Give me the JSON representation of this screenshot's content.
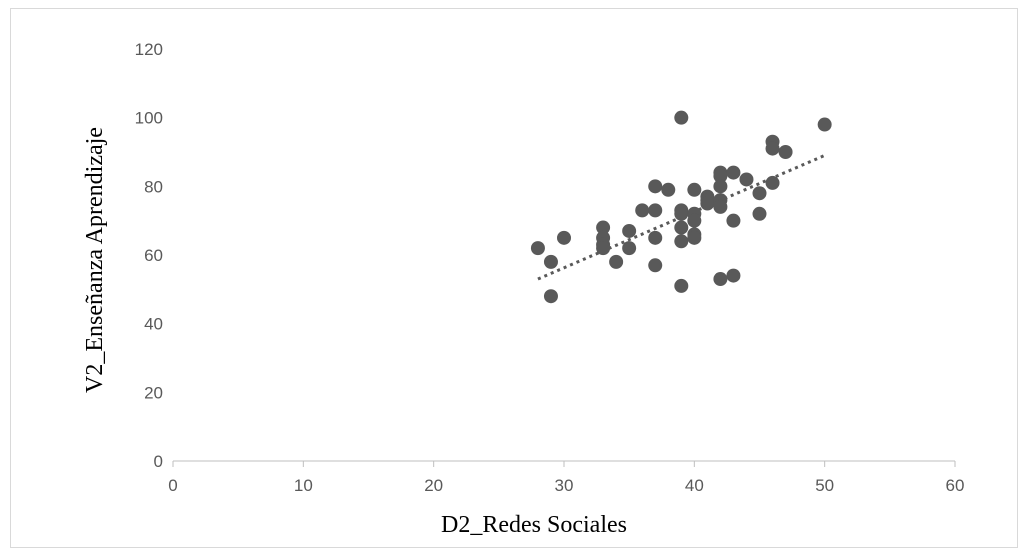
{
  "chart_data": {
    "type": "scatter",
    "title": "",
    "xlabel": "D2_Redes Sociales",
    "ylabel": "V2_Enseñanza Aprendizaje",
    "xlim": [
      0,
      60
    ],
    "ylim": [
      0,
      120
    ],
    "x_ticks": [
      0,
      10,
      20,
      30,
      40,
      50,
      60
    ],
    "y_ticks": [
      0,
      20,
      40,
      60,
      80,
      100,
      120
    ],
    "grid": false,
    "legend": "none",
    "trendline": {
      "style": "dotted linear",
      "x": [
        28,
        50
      ],
      "y": [
        53,
        89
      ]
    },
    "colors": {
      "marker": "#595959",
      "trendline": "#595959",
      "axis": "#bfbfbf",
      "tick_text": "#595959"
    },
    "points": [
      {
        "x": 28,
        "y": 62
      },
      {
        "x": 29,
        "y": 58
      },
      {
        "x": 29,
        "y": 48
      },
      {
        "x": 30,
        "y": 65
      },
      {
        "x": 33,
        "y": 68
      },
      {
        "x": 33,
        "y": 65
      },
      {
        "x": 33,
        "y": 63
      },
      {
        "x": 33,
        "y": 62
      },
      {
        "x": 34,
        "y": 58
      },
      {
        "x": 35,
        "y": 67
      },
      {
        "x": 35,
        "y": 62
      },
      {
        "x": 36,
        "y": 73
      },
      {
        "x": 37,
        "y": 80
      },
      {
        "x": 37,
        "y": 73
      },
      {
        "x": 37,
        "y": 65
      },
      {
        "x": 37,
        "y": 57
      },
      {
        "x": 38,
        "y": 79
      },
      {
        "x": 39,
        "y": 100
      },
      {
        "x": 39,
        "y": 73
      },
      {
        "x": 39,
        "y": 72
      },
      {
        "x": 39,
        "y": 68
      },
      {
        "x": 39,
        "y": 64
      },
      {
        "x": 39,
        "y": 51
      },
      {
        "x": 40,
        "y": 79
      },
      {
        "x": 40,
        "y": 72
      },
      {
        "x": 40,
        "y": 70
      },
      {
        "x": 40,
        "y": 66
      },
      {
        "x": 40,
        "y": 65
      },
      {
        "x": 41,
        "y": 77
      },
      {
        "x": 41,
        "y": 76
      },
      {
        "x": 41,
        "y": 75
      },
      {
        "x": 42,
        "y": 84
      },
      {
        "x": 42,
        "y": 83
      },
      {
        "x": 42,
        "y": 80
      },
      {
        "x": 42,
        "y": 76
      },
      {
        "x": 42,
        "y": 74
      },
      {
        "x": 42,
        "y": 53
      },
      {
        "x": 43,
        "y": 84
      },
      {
        "x": 43,
        "y": 70
      },
      {
        "x": 43,
        "y": 54
      },
      {
        "x": 44,
        "y": 82
      },
      {
        "x": 45,
        "y": 78
      },
      {
        "x": 45,
        "y": 72
      },
      {
        "x": 46,
        "y": 93
      },
      {
        "x": 46,
        "y": 91
      },
      {
        "x": 46,
        "y": 81
      },
      {
        "x": 47,
        "y": 90
      },
      {
        "x": 50,
        "y": 98
      }
    ]
  }
}
